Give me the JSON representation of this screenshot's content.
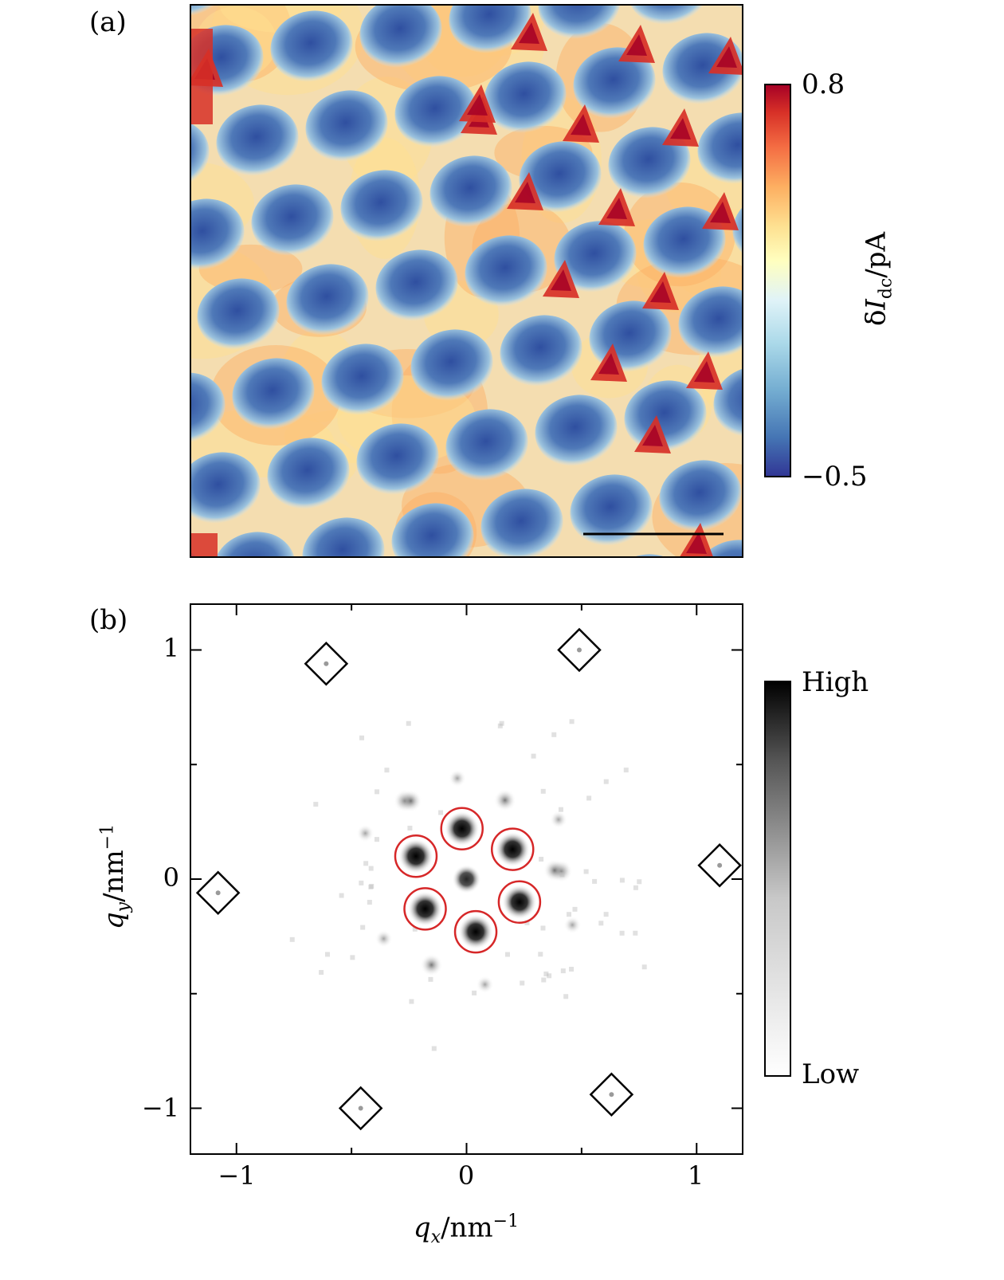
{
  "figure": {
    "panel_a": {
      "label": "(a)",
      "colorbar": {
        "max_label": "0.8",
        "min_label": "−0.5",
        "quantity_symbol": "δ",
        "quantity_main": "I",
        "quantity_sub": "dc",
        "unit": "/pA",
        "colors": [
          "#313695",
          "#4575b4",
          "#74add1",
          "#abd9e9",
          "#e0f3f8",
          "#ffffbf",
          "#fee090",
          "#fdae61",
          "#f46d43",
          "#d73027",
          "#a50026"
        ],
        "range": [
          -0.5,
          0.8
        ]
      }
    },
    "panel_b": {
      "label": "(b)",
      "colorbar": {
        "max_label": "High",
        "min_label": "Low"
      },
      "x_ticks": [
        "−1",
        "0",
        "1"
      ],
      "y_ticks": [
        "1",
        "0",
        "−1"
      ],
      "xlabel_var": "q",
      "xlabel_sub": "x",
      "xlabel_unit": "/nm",
      "xlabel_exp": "−1",
      "ylabel_var": "q",
      "ylabel_sub": "y",
      "ylabel_unit": "/nm",
      "ylabel_exp": "−1",
      "xlim": [
        -1.2,
        1.2
      ],
      "ylim": [
        -1.2,
        1.2
      ]
    }
  },
  "chart_data": {
    "type": "scatter",
    "title": "",
    "xlabel": "q_x/nm^-1",
    "ylabel": "q_y/nm^-1",
    "xlim": [
      -1.2,
      1.2
    ],
    "ylim": [
      -1.2,
      1.2
    ],
    "series": [
      {
        "name": "",
        "marker": "circle",
        "color": "#d62728",
        "points": [
          [
            -0.02,
            0.22
          ],
          [
            0.2,
            0.13
          ],
          [
            0.23,
            -0.1
          ],
          [
            0.04,
            -0.23
          ],
          [
            -0.18,
            -0.13
          ],
          [
            -0.22,
            0.1
          ]
        ]
      },
      {
        "name": "",
        "marker": "diamond",
        "color": "#000000",
        "points": [
          [
            -0.61,
            0.94
          ],
          [
            0.49,
            1.0
          ],
          [
            1.1,
            0.06
          ],
          [
            0.63,
            -0.94
          ],
          [
            -0.46,
            -1.0
          ],
          [
            -1.08,
            -0.06
          ]
        ]
      }
    ]
  }
}
